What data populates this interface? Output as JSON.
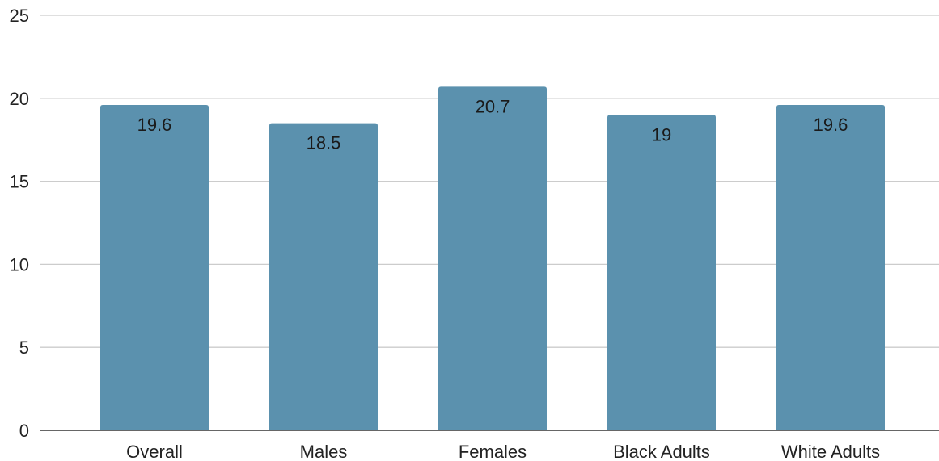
{
  "chart_data": {
    "type": "bar",
    "title": "",
    "xlabel": "",
    "ylabel": "",
    "categories": [
      "Overall",
      "Males",
      "Females",
      "Black Adults",
      "White Adults"
    ],
    "values": [
      19.6,
      18.5,
      20.7,
      19,
      19.6
    ],
    "value_labels": [
      "19.6",
      "18.5",
      "20.7",
      "19",
      "19.6"
    ],
    "ylim": [
      0,
      25
    ],
    "yticks": [
      0,
      5,
      10,
      15,
      20,
      25
    ],
    "ytick_labels": [
      "0",
      "5",
      "10",
      "15",
      "20",
      "25"
    ],
    "grid": true,
    "legend": "none",
    "bar_color": "#5b91ae",
    "data_labels_inside_top": true
  }
}
